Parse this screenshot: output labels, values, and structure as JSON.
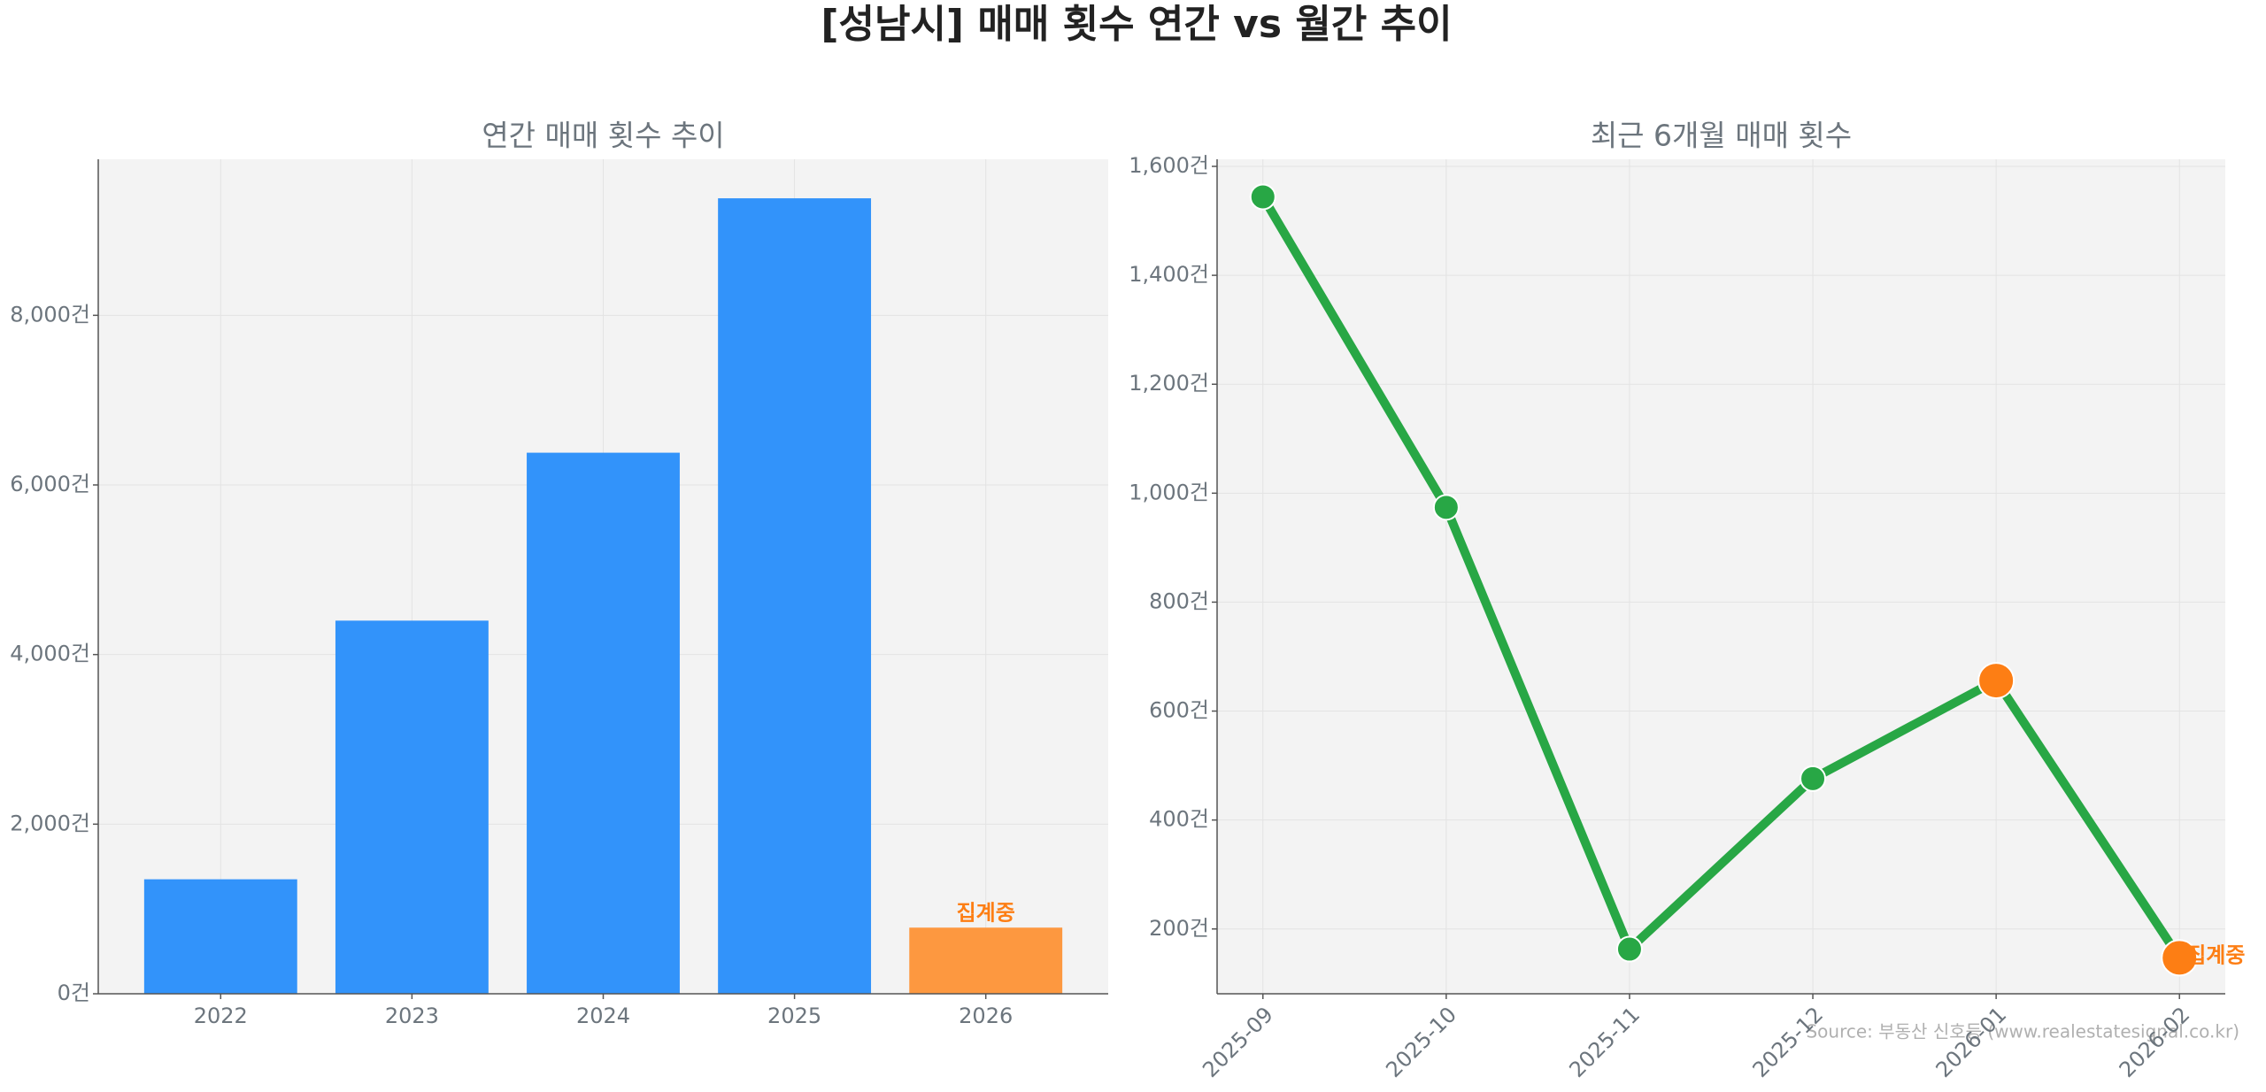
{
  "title": "[성남시] 매매 횟수 연간 vs 월간 추이",
  "source": "Source: 부동산 신호등 (www.realestatesignal.co.kr)",
  "chart_data": [
    {
      "type": "bar",
      "title": "연간 매매 횟수 추이",
      "categories": [
        "2022",
        "2023",
        "2024",
        "2025",
        "2026"
      ],
      "values": [
        1350,
        4400,
        6380,
        9380,
        780
      ],
      "colors": [
        "#3293fa",
        "#3293fa",
        "#3293fa",
        "#3293fa",
        "#fd9840"
      ],
      "annotation": "집계중",
      "annotation_color": "#fd7e14",
      "ylim": [
        0,
        9840
      ],
      "yticks": [
        {
          "value": 0,
          "label": "0건"
        },
        {
          "value": 2000,
          "label": "2,000건"
        },
        {
          "value": 4000,
          "label": "4,000건"
        },
        {
          "value": 6000,
          "label": "6,000건"
        },
        {
          "value": 8000,
          "label": "8,000건"
        }
      ],
      "grid": true
    },
    {
      "type": "line",
      "title": "최근 6개월 매매 횟수",
      "categories": [
        "2025-09",
        "2025-10",
        "2025-11",
        "2025-12",
        "2026-01",
        "2026-02"
      ],
      "values": [
        1544,
        974,
        163,
        476,
        656,
        147
      ],
      "color": "#28a745",
      "point_colors": [
        "#28a745",
        "#28a745",
        "#28a745",
        "#28a745",
        "#fd7e14",
        "#fd7e14"
      ],
      "annotation": "집계중",
      "annotation_color": "#fd7e14",
      "ylim": [
        81,
        1613
      ],
      "yticks": [
        {
          "value": 200,
          "label": "200건"
        },
        {
          "value": 400,
          "label": "400건"
        },
        {
          "value": 600,
          "label": "600건"
        },
        {
          "value": 800,
          "label": "800건"
        },
        {
          "value": 1000,
          "label": "1,000건"
        },
        {
          "value": 1200,
          "label": "1,200건"
        },
        {
          "value": 1400,
          "label": "1,400건"
        },
        {
          "value": 1600,
          "label": "1,600건"
        }
      ],
      "grid": true
    }
  ]
}
